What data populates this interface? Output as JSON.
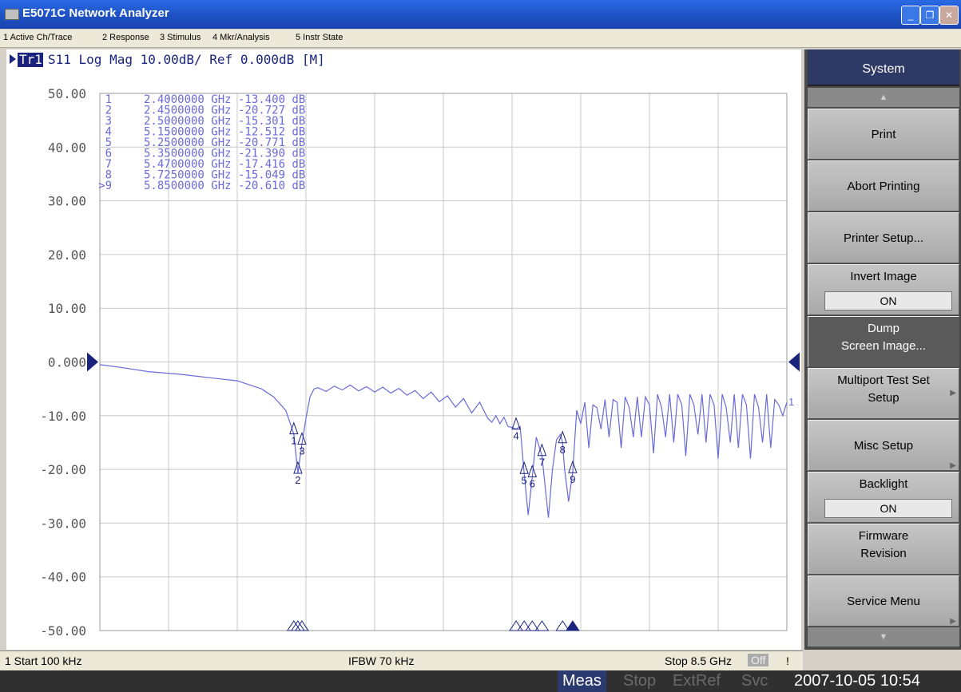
{
  "window": {
    "title": "E5071C Network Analyzer",
    "min_label": "_",
    "max_label": "❐",
    "close_label": "✕"
  },
  "menu": [
    {
      "label": "1 Active Ch/Trace"
    },
    {
      "label": "2 Response"
    },
    {
      "label": "3 Stimulus"
    },
    {
      "label": "4 Mkr/Analysis"
    },
    {
      "label": "5 Instr State"
    }
  ],
  "trace_header": {
    "badge": "Tr1",
    "text": "S11  Log Mag  10.00dB/  Ref  0.000dB  [M]"
  },
  "chart_data": {
    "type": "line",
    "xlim": [
      0.0001,
      8.5
    ],
    "ylim": [
      -50,
      50
    ],
    "y_ticks": [
      "50.00",
      "40.00",
      "30.00",
      "20.00",
      "10.00",
      "0.000",
      "-10.00",
      "-20.00",
      "-30.00",
      "-40.00",
      "-50.00"
    ],
    "grid": true,
    "series": [
      {
        "x": [
          0.0001,
          0.25,
          0.6,
          1.0,
          1.4,
          1.7,
          2.0,
          2.15,
          2.3,
          2.4,
          2.45,
          2.5,
          2.55,
          2.6,
          2.65,
          2.7,
          2.8,
          2.9,
          3.0,
          3.1,
          3.2,
          3.3,
          3.4,
          3.5,
          3.6,
          3.7,
          3.8,
          3.9,
          4.0,
          4.1,
          4.2,
          4.3,
          4.4,
          4.5,
          4.6,
          4.7,
          4.8,
          4.85,
          4.9,
          4.95,
          5.0,
          5.05,
          5.1,
          5.15,
          5.2,
          5.25,
          5.3,
          5.35,
          5.4,
          5.47,
          5.55,
          5.6,
          5.65,
          5.7,
          5.725,
          5.75,
          5.8,
          5.85,
          5.9,
          5.95,
          6.0,
          6.05,
          6.1,
          6.15,
          6.2,
          6.25,
          6.3,
          6.35,
          6.4,
          6.45,
          6.5,
          6.55,
          6.6,
          6.65,
          6.7,
          6.75,
          6.8,
          6.85,
          6.9,
          6.95,
          7.0,
          7.05,
          7.1,
          7.15,
          7.2,
          7.25,
          7.3,
          7.35,
          7.4,
          7.45,
          7.5,
          7.55,
          7.6,
          7.65,
          7.7,
          7.75,
          7.8,
          7.85,
          7.9,
          7.95,
          8.0,
          8.05,
          8.1,
          8.15,
          8.2,
          8.25,
          8.3,
          8.35,
          8.4,
          8.45,
          8.5
        ],
        "values": [
          -0.5,
          -1.0,
          -1.8,
          -2.3,
          -3.0,
          -3.5,
          -5.0,
          -6.5,
          -9.0,
          -13.4,
          -20.7,
          -15.3,
          -10.5,
          -6.5,
          -5.0,
          -4.8,
          -5.5,
          -4.5,
          -5.2,
          -4.3,
          -5.4,
          -4.6,
          -5.6,
          -4.7,
          -5.8,
          -4.9,
          -6.2,
          -5.3,
          -6.8,
          -5.6,
          -7.4,
          -6.3,
          -8.4,
          -6.8,
          -9.5,
          -7.5,
          -10.5,
          -11.2,
          -10.0,
          -11.5,
          -10.3,
          -12.0,
          -12.2,
          -12.5,
          -12.0,
          -20.8,
          -28.5,
          -21.4,
          -14.0,
          -17.4,
          -29.0,
          -20.0,
          -14.5,
          -13.5,
          -15.0,
          -20.0,
          -26.0,
          -20.6,
          -9.0,
          -11.5,
          -7.5,
          -16.0,
          -8.0,
          -8.5,
          -12.5,
          -7.0,
          -14.0,
          -7.0,
          -7.5,
          -16.0,
          -6.5,
          -8.5,
          -14.0,
          -6.5,
          -14.0,
          -6.5,
          -8.0,
          -17.0,
          -6.0,
          -8.5,
          -14.0,
          -6.0,
          -15.0,
          -6.0,
          -8.0,
          -17.5,
          -6.0,
          -8.0,
          -13.5,
          -6.0,
          -15.0,
          -6.0,
          -8.0,
          -18.0,
          -6.0,
          -8.5,
          -15.0,
          -6.0,
          -16.0,
          -6.0,
          -8.0,
          -18.0,
          -6.0,
          -8.5,
          -15.0,
          -6.0,
          -16.0,
          -7.0,
          -8.0,
          -10.0,
          -7.5
        ]
      }
    ],
    "markers": [
      {
        "label": "1",
        "freq": "2.4000000 GHz",
        "value": "-13.400 dB"
      },
      {
        "label": "2",
        "freq": "2.4500000 GHz",
        "value": "-20.727 dB"
      },
      {
        "label": "3",
        "freq": "2.5000000 GHz",
        "value": "-15.301 dB"
      },
      {
        "label": "4",
        "freq": "5.1500000 GHz",
        "value": "-12.512 dB"
      },
      {
        "label": "5",
        "freq": "5.2500000 GHz",
        "value": "-20.771 dB"
      },
      {
        "label": "6",
        "freq": "5.3500000 GHz",
        "value": "-21.390 dB"
      },
      {
        "label": "7",
        "freq": "5.4700000 GHz",
        "value": "-17.416 dB"
      },
      {
        "label": "8",
        "freq": "5.7250000 GHz",
        "value": "-15.049 dB"
      },
      {
        "label": ">9",
        "freq": "5.8500000 GHz",
        "value": "-20.610 dB"
      }
    ],
    "trace_end_label": "1",
    "trace_color": "#6a6ad8"
  },
  "softkeys": {
    "system": "System",
    "print": "Print",
    "abort": "Abort Printing",
    "printer_setup": "Printer Setup...",
    "invert_label": "Invert Image",
    "invert_value": "ON",
    "dump_line1": "Dump",
    "dump_line2": "Screen Image...",
    "multiport_line1": "Multiport Test Set",
    "multiport_line2": "Setup",
    "misc": "Misc Setup",
    "backlight_label": "Backlight",
    "backlight_value": "ON",
    "firmware_line1": "Firmware",
    "firmware_line2": "Revision",
    "service": "Service Menu"
  },
  "status": {
    "start": "1  Start 100 kHz",
    "ifbw": "IFBW 70 kHz",
    "stop": "Stop 8.5 GHz",
    "off": "Off",
    "excl": "!"
  },
  "bottom": {
    "meas": "Meas",
    "stop": "Stop",
    "extref": "ExtRef",
    "svc": "Svc",
    "datetime": "2007-10-05 10:54"
  }
}
